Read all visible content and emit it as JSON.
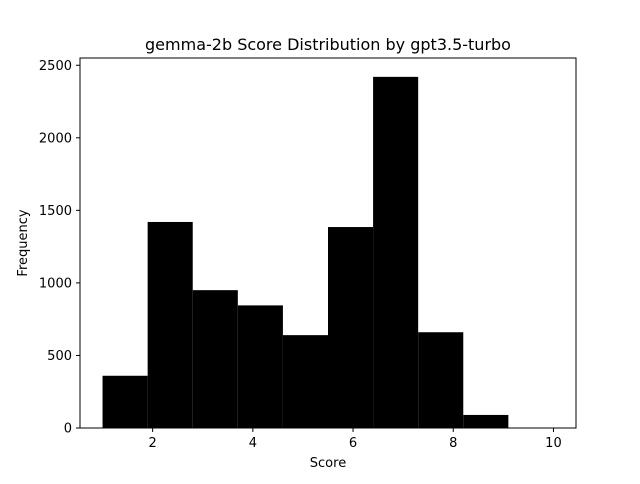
{
  "chart_data": {
    "type": "bar",
    "title": "gemma-2b Score Distribution by gpt3.5-turbo",
    "xlabel": "Score",
    "ylabel": "Frequency",
    "bin_edges": [
      1.0,
      1.9,
      2.8,
      3.7,
      4.6,
      5.5,
      6.4,
      7.3,
      8.2,
      9.1,
      10.0
    ],
    "values": [
      360,
      1420,
      950,
      845,
      640,
      1385,
      2420,
      660,
      90,
      0
    ],
    "bar_color": "#000000",
    "xlim": [
      0.55,
      10.45
    ],
    "ylim": [
      0,
      2550
    ],
    "x_ticks": [
      2,
      4,
      6,
      8,
      10
    ],
    "y_ticks": [
      0,
      500,
      1000,
      1500,
      2000,
      2500
    ],
    "grid": false
  }
}
